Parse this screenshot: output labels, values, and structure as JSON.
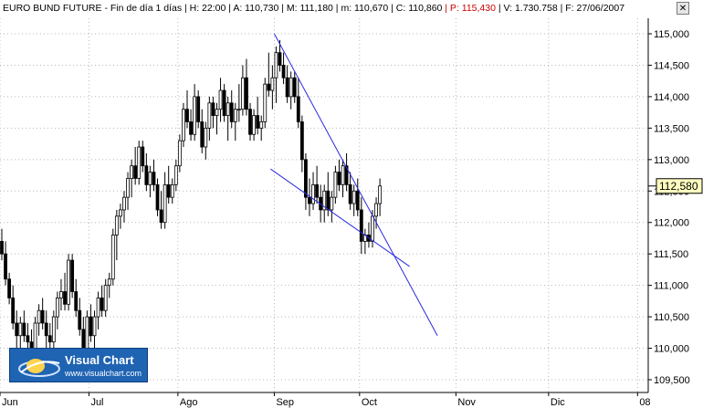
{
  "header": {
    "instrument": "EURO BUND FUTURE",
    "timeframe": "Fin de día 1 días",
    "fields": [
      {
        "label": "H:",
        "value": "22:00",
        "color": "#000000"
      },
      {
        "label": "A:",
        "value": "110,730",
        "color": "#000000"
      },
      {
        "label": "M:",
        "value": "111,180",
        "color": "#000000"
      },
      {
        "label": "m:",
        "value": "110,670",
        "color": "#000000"
      },
      {
        "label": "C:",
        "value": "110,860",
        "color": "#000000"
      },
      {
        "label": "P:",
        "value": "115,430",
        "color": "#cc0000"
      },
      {
        "label": "V:",
        "value": "1.730.758",
        "color": "#000000"
      },
      {
        "label": "F:",
        "value": "27/06/2007",
        "color": "#000000"
      }
    ],
    "close_symbol": "✕"
  },
  "logo": {
    "brand": "Visual Chart",
    "url": "www.visualchart.com",
    "icon": "visualchart-swoosh-icon"
  },
  "colors": {
    "candle": "#000000",
    "trendline": "#2a2ae0",
    "grid": "#b8b8b8",
    "last_price_box": "#ffffc0"
  },
  "chart_data": {
    "type": "candlestick",
    "title": "",
    "xlabel": "",
    "ylabel": "",
    "ylim": [
      109.3,
      115.2
    ],
    "yticks": [
      "115,000",
      "114,500",
      "114,000",
      "113,500",
      "113,000",
      "112,500",
      "112,000",
      "111,500",
      "111,000",
      "110,500",
      "110,000",
      "109,500"
    ],
    "ytick_values": [
      115.0,
      114.5,
      114.0,
      113.5,
      113.0,
      112.5,
      112.0,
      111.5,
      111.0,
      110.5,
      110.0,
      109.5
    ],
    "month_labels": [
      {
        "label": "Jun",
        "day": 0
      },
      {
        "label": "Jul",
        "day": 24
      },
      {
        "label": "Ago",
        "day": 48
      },
      {
        "label": "Sep",
        "day": 74
      },
      {
        "label": "Oct",
        "day": 97
      },
      {
        "label": "Nov",
        "day": 123
      },
      {
        "label": "Dic",
        "day": 148
      },
      {
        "label": "08",
        "day": 172
      }
    ],
    "x_day_range": [
      0,
      176
    ],
    "last_price": "112,580",
    "last_price_value": 112.58,
    "grid": true,
    "candles": [
      {
        "o": 111.7,
        "h": 111.9,
        "l": 111.4,
        "c": 111.5
      },
      {
        "o": 111.5,
        "h": 111.7,
        "l": 111.0,
        "c": 111.1
      },
      {
        "o": 111.1,
        "h": 111.2,
        "l": 110.7,
        "c": 110.8
      },
      {
        "o": 110.8,
        "h": 111.0,
        "l": 110.3,
        "c": 110.4
      },
      {
        "o": 110.4,
        "h": 110.6,
        "l": 110.0,
        "c": 110.2
      },
      {
        "o": 110.2,
        "h": 110.5,
        "l": 110.0,
        "c": 110.4
      },
      {
        "o": 110.4,
        "h": 110.6,
        "l": 110.1,
        "c": 110.2
      },
      {
        "o": 110.2,
        "h": 110.4,
        "l": 109.9,
        "c": 110.1
      },
      {
        "o": 110.1,
        "h": 110.3,
        "l": 109.9,
        "c": 110.0
      },
      {
        "o": 110.0,
        "h": 110.5,
        "l": 109.9,
        "c": 110.4
      },
      {
        "o": 110.4,
        "h": 110.7,
        "l": 110.2,
        "c": 110.6
      },
      {
        "o": 110.6,
        "h": 110.8,
        "l": 110.3,
        "c": 110.4
      },
      {
        "o": 110.4,
        "h": 110.6,
        "l": 110.0,
        "c": 110.2
      },
      {
        "o": 110.2,
        "h": 110.4,
        "l": 110.0,
        "c": 110.1
      },
      {
        "o": 110.1,
        "h": 110.6,
        "l": 110.0,
        "c": 110.5
      },
      {
        "o": 110.5,
        "h": 110.9,
        "l": 110.3,
        "c": 110.8
      },
      {
        "o": 110.8,
        "h": 111.1,
        "l": 110.6,
        "c": 110.9
      },
      {
        "o": 110.9,
        "h": 111.2,
        "l": 110.6,
        "c": 110.7
      },
      {
        "o": 110.7,
        "h": 111.5,
        "l": 110.6,
        "c": 111.4
      },
      {
        "o": 111.4,
        "h": 111.5,
        "l": 110.8,
        "c": 110.9
      },
      {
        "o": 110.9,
        "h": 111.1,
        "l": 110.5,
        "c": 110.6
      },
      {
        "o": 110.6,
        "h": 110.8,
        "l": 110.2,
        "c": 110.3
      },
      {
        "o": 110.3,
        "h": 110.5,
        "l": 109.9,
        "c": 110.0
      },
      {
        "o": 110.0,
        "h": 110.6,
        "l": 109.9,
        "c": 110.5
      },
      {
        "o": 110.5,
        "h": 110.7,
        "l": 110.1,
        "c": 110.2
      },
      {
        "o": 110.2,
        "h": 110.6,
        "l": 110.0,
        "c": 110.5
      },
      {
        "o": 110.5,
        "h": 110.9,
        "l": 110.3,
        "c": 110.8
      },
      {
        "o": 110.8,
        "h": 111.0,
        "l": 110.5,
        "c": 110.6
      },
      {
        "o": 110.6,
        "h": 111.1,
        "l": 110.5,
        "c": 111.0
      },
      {
        "o": 111.0,
        "h": 111.2,
        "l": 110.8,
        "c": 111.1
      },
      {
        "o": 111.1,
        "h": 111.9,
        "l": 111.0,
        "c": 111.8
      },
      {
        "o": 111.8,
        "h": 112.2,
        "l": 111.4,
        "c": 112.1
      },
      {
        "o": 112.1,
        "h": 112.3,
        "l": 111.9,
        "c": 112.2
      },
      {
        "o": 112.2,
        "h": 112.5,
        "l": 112.0,
        "c": 112.4
      },
      {
        "o": 112.4,
        "h": 112.8,
        "l": 112.2,
        "c": 112.7
      },
      {
        "o": 112.7,
        "h": 113.0,
        "l": 112.4,
        "c": 112.9
      },
      {
        "o": 112.9,
        "h": 113.2,
        "l": 112.6,
        "c": 112.7
      },
      {
        "o": 112.7,
        "h": 113.3,
        "l": 112.6,
        "c": 113.2
      },
      {
        "o": 113.2,
        "h": 113.3,
        "l": 112.8,
        "c": 112.9
      },
      {
        "o": 112.9,
        "h": 113.1,
        "l": 112.5,
        "c": 112.6
      },
      {
        "o": 112.6,
        "h": 112.9,
        "l": 112.4,
        "c": 112.8
      },
      {
        "o": 112.8,
        "h": 113.0,
        "l": 112.5,
        "c": 112.6
      },
      {
        "o": 112.6,
        "h": 112.7,
        "l": 112.1,
        "c": 112.2
      },
      {
        "o": 112.2,
        "h": 112.5,
        "l": 111.9,
        "c": 112.0
      },
      {
        "o": 112.0,
        "h": 112.8,
        "l": 111.9,
        "c": 112.6
      },
      {
        "o": 112.6,
        "h": 112.9,
        "l": 112.3,
        "c": 112.4
      },
      {
        "o": 112.4,
        "h": 112.7,
        "l": 112.3,
        "c": 112.6
      },
      {
        "o": 112.6,
        "h": 113.0,
        "l": 112.5,
        "c": 112.9
      },
      {
        "o": 112.9,
        "h": 113.4,
        "l": 112.8,
        "c": 113.3
      },
      {
        "o": 113.3,
        "h": 113.9,
        "l": 113.2,
        "c": 113.8
      },
      {
        "o": 113.8,
        "h": 114.1,
        "l": 113.5,
        "c": 113.6
      },
      {
        "o": 113.6,
        "h": 113.8,
        "l": 113.3,
        "c": 113.4
      },
      {
        "o": 113.4,
        "h": 114.2,
        "l": 113.3,
        "c": 114.0
      },
      {
        "o": 114.0,
        "h": 114.1,
        "l": 113.5,
        "c": 113.6
      },
      {
        "o": 113.6,
        "h": 113.8,
        "l": 113.1,
        "c": 113.2
      },
      {
        "o": 113.2,
        "h": 113.6,
        "l": 113.0,
        "c": 113.5
      },
      {
        "o": 113.5,
        "h": 114.0,
        "l": 113.3,
        "c": 113.9
      },
      {
        "o": 113.9,
        "h": 114.0,
        "l": 113.5,
        "c": 113.7
      },
      {
        "o": 113.7,
        "h": 113.9,
        "l": 113.4,
        "c": 113.8
      },
      {
        "o": 113.8,
        "h": 114.3,
        "l": 113.6,
        "c": 114.1
      },
      {
        "o": 114.1,
        "h": 114.2,
        "l": 113.6,
        "c": 113.7
      },
      {
        "o": 113.7,
        "h": 114.0,
        "l": 113.3,
        "c": 113.9
      },
      {
        "o": 113.9,
        "h": 114.1,
        "l": 113.5,
        "c": 113.6
      },
      {
        "o": 113.6,
        "h": 113.9,
        "l": 113.3,
        "c": 113.8
      },
      {
        "o": 113.8,
        "h": 114.2,
        "l": 113.6,
        "c": 113.8
      },
      {
        "o": 113.8,
        "h": 114.5,
        "l": 113.7,
        "c": 114.3
      },
      {
        "o": 114.3,
        "h": 114.6,
        "l": 113.7,
        "c": 113.8
      },
      {
        "o": 113.8,
        "h": 113.9,
        "l": 113.3,
        "c": 113.4
      },
      {
        "o": 113.4,
        "h": 113.8,
        "l": 113.3,
        "c": 113.7
      },
      {
        "o": 113.7,
        "h": 114.0,
        "l": 113.4,
        "c": 113.5
      },
      {
        "o": 113.5,
        "h": 113.7,
        "l": 113.3,
        "c": 113.6
      },
      {
        "o": 113.6,
        "h": 114.3,
        "l": 113.5,
        "c": 114.2
      },
      {
        "o": 114.2,
        "h": 114.7,
        "l": 114.0,
        "c": 114.1
      },
      {
        "o": 114.1,
        "h": 114.5,
        "l": 113.8,
        "c": 114.3
      },
      {
        "o": 114.3,
        "h": 114.8,
        "l": 113.9,
        "c": 114.7
      },
      {
        "o": 114.7,
        "h": 114.9,
        "l": 114.4,
        "c": 114.5
      },
      {
        "o": 114.5,
        "h": 114.7,
        "l": 114.2,
        "c": 114.3
      },
      {
        "o": 114.3,
        "h": 114.5,
        "l": 113.9,
        "c": 114.0
      },
      {
        "o": 114.0,
        "h": 114.4,
        "l": 113.8,
        "c": 114.3
      },
      {
        "o": 114.3,
        "h": 114.4,
        "l": 113.9,
        "c": 114.0
      },
      {
        "o": 114.0,
        "h": 114.3,
        "l": 113.5,
        "c": 113.6
      },
      {
        "o": 113.6,
        "h": 113.7,
        "l": 112.8,
        "c": 113.0
      },
      {
        "o": 113.0,
        "h": 113.1,
        "l": 112.2,
        "c": 112.4
      },
      {
        "o": 112.4,
        "h": 112.7,
        "l": 112.1,
        "c": 112.3
      },
      {
        "o": 112.3,
        "h": 112.8,
        "l": 112.2,
        "c": 112.6
      },
      {
        "o": 112.6,
        "h": 112.9,
        "l": 112.3,
        "c": 112.4
      },
      {
        "o": 112.4,
        "h": 112.6,
        "l": 112.0,
        "c": 112.2
      },
      {
        "o": 112.2,
        "h": 112.6,
        "l": 112.0,
        "c": 112.5
      },
      {
        "o": 112.5,
        "h": 112.8,
        "l": 112.1,
        "c": 112.2
      },
      {
        "o": 112.2,
        "h": 112.5,
        "l": 112.0,
        "c": 112.4
      },
      {
        "o": 112.4,
        "h": 112.9,
        "l": 112.3,
        "c": 112.8
      },
      {
        "o": 112.8,
        "h": 113.0,
        "l": 112.5,
        "c": 112.6
      },
      {
        "o": 112.6,
        "h": 113.0,
        "l": 112.4,
        "c": 112.9
      },
      {
        "o": 112.9,
        "h": 113.1,
        "l": 112.5,
        "c": 112.6
      },
      {
        "o": 112.6,
        "h": 112.8,
        "l": 112.2,
        "c": 112.3
      },
      {
        "o": 112.3,
        "h": 112.6,
        "l": 112.1,
        "c": 112.5
      },
      {
        "o": 112.5,
        "h": 112.7,
        "l": 112.1,
        "c": 112.2
      },
      {
        "o": 112.2,
        "h": 112.4,
        "l": 111.5,
        "c": 111.7
      },
      {
        "o": 111.7,
        "h": 111.9,
        "l": 111.5,
        "c": 111.8
      },
      {
        "o": 111.8,
        "h": 112.0,
        "l": 111.6,
        "c": 111.7
      },
      {
        "o": 111.7,
        "h": 112.2,
        "l": 111.6,
        "c": 112.1
      },
      {
        "o": 112.1,
        "h": 112.4,
        "l": 111.9,
        "c": 112.3
      },
      {
        "o": 112.3,
        "h": 112.7,
        "l": 112.1,
        "c": 112.58
      }
    ],
    "candle_start_day": 0,
    "trendlines": [
      {
        "name": "upper",
        "from": {
          "day": 74.0,
          "value": 115.0
        },
        "to": {
          "day": 118.0,
          "value": 110.2
        }
      },
      {
        "name": "lower",
        "from": {
          "day": 73.0,
          "value": 112.85
        },
        "to": {
          "day": 110.5,
          "value": 111.3
        }
      }
    ]
  }
}
